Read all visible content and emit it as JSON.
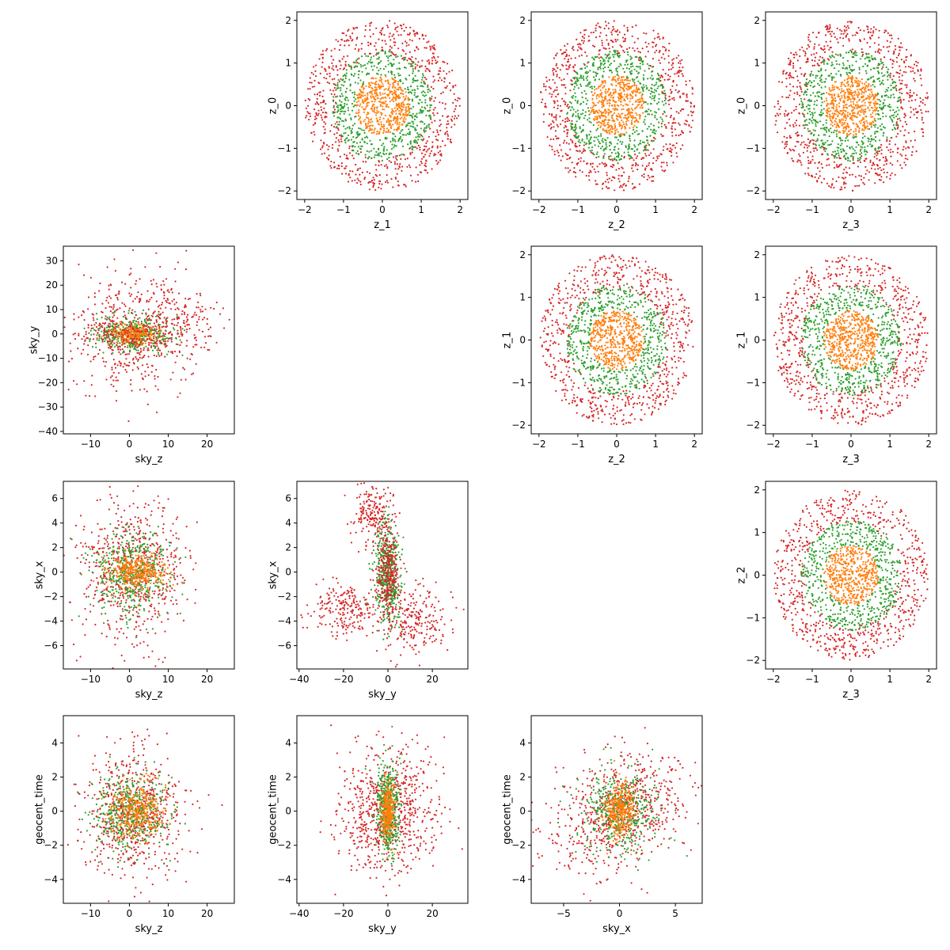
{
  "figure": {
    "background": "#ffffff",
    "axes_color": "#000000"
  },
  "legend": null,
  "chart_data": [
    {
      "type": "scatter",
      "subplot": [
        0,
        1
      ],
      "xlabel": "z_1",
      "ylabel": "z_0",
      "xlim": [
        -2.2,
        2.2
      ],
      "ylim": [
        -2.2,
        2.2
      ],
      "xticks": [
        -2,
        -1,
        0,
        1,
        2
      ],
      "yticks": [
        -2,
        -1,
        0,
        1,
        2
      ],
      "grid": false,
      "series": [
        {
          "color": "#d62728",
          "n": 700,
          "shape": "ring",
          "cx": 0,
          "cy": 0,
          "r0": 1.2,
          "r1": 2.0,
          "seed": 11
        },
        {
          "color": "#2ca02c",
          "n": 550,
          "shape": "ring",
          "cx": 0,
          "cy": 0,
          "r0": 0.7,
          "r1": 1.3,
          "seed": 12
        },
        {
          "color": "#ff7f0e",
          "n": 500,
          "shape": "disk",
          "cx": 0,
          "cy": 0,
          "r0": 0,
          "r1": 0.7,
          "seed": 13
        }
      ]
    },
    {
      "type": "scatter",
      "subplot": [
        0,
        2
      ],
      "xlabel": "z_2",
      "ylabel": "z_0",
      "xlim": [
        -2.2,
        2.2
      ],
      "ylim": [
        -2.2,
        2.2
      ],
      "xticks": [
        -2,
        -1,
        0,
        1,
        2
      ],
      "yticks": [
        -2,
        -1,
        0,
        1,
        2
      ],
      "grid": false,
      "series": [
        {
          "color": "#d62728",
          "n": 700,
          "shape": "ring",
          "cx": 0,
          "cy": 0,
          "r0": 1.2,
          "r1": 2.0,
          "seed": 21
        },
        {
          "color": "#2ca02c",
          "n": 550,
          "shape": "ring",
          "cx": 0,
          "cy": 0,
          "r0": 0.7,
          "r1": 1.3,
          "seed": 22
        },
        {
          "color": "#ff7f0e",
          "n": 500,
          "shape": "disk",
          "cx": 0,
          "cy": 0,
          "r0": 0,
          "r1": 0.7,
          "seed": 23
        }
      ]
    },
    {
      "type": "scatter",
      "subplot": [
        0,
        3
      ],
      "xlabel": "z_3",
      "ylabel": "z_0",
      "xlim": [
        -2.2,
        2.2
      ],
      "ylim": [
        -2.2,
        2.2
      ],
      "xticks": [
        -2,
        -1,
        0,
        1,
        2
      ],
      "yticks": [
        -2,
        -1,
        0,
        1,
        2
      ],
      "grid": false,
      "series": [
        {
          "color": "#d62728",
          "n": 700,
          "shape": "ring",
          "cx": 0,
          "cy": 0,
          "r0": 1.2,
          "r1": 2.0,
          "seed": 31
        },
        {
          "color": "#2ca02c",
          "n": 550,
          "shape": "ring",
          "cx": 0,
          "cy": 0,
          "r0": 0.7,
          "r1": 1.3,
          "seed": 32
        },
        {
          "color": "#ff7f0e",
          "n": 500,
          "shape": "disk",
          "cx": 0,
          "cy": 0,
          "r0": 0,
          "r1": 0.7,
          "seed": 33
        }
      ]
    },
    {
      "type": "scatter",
      "subplot": [
        1,
        0
      ],
      "xlabel": "sky_z",
      "ylabel": "sky_y",
      "xlim": [
        -17,
        27
      ],
      "ylim": [
        -41,
        36
      ],
      "xticks": [
        -10,
        0,
        10,
        20
      ],
      "yticks": [
        -40,
        -30,
        -20,
        -10,
        0,
        10,
        20,
        30
      ],
      "grid": false,
      "series": [
        {
          "color": "#d62728",
          "n": 420,
          "shape": "gauss",
          "cx": 0,
          "cy": 0,
          "sx": 7,
          "sy": 13,
          "seed": 41
        },
        {
          "color": "#d62728",
          "n": 200,
          "shape": "gauss",
          "cx": 12,
          "cy": 5,
          "sx": 6,
          "sy": 7,
          "seed": 42
        },
        {
          "color": "#2ca02c",
          "n": 380,
          "shape": "gauss",
          "cx": 1,
          "cy": 0,
          "sx": 5,
          "sy": 3.5,
          "seed": 43
        },
        {
          "color": "#ff7f0e",
          "n": 300,
          "shape": "gauss",
          "cx": 1,
          "cy": 0,
          "sx": 3,
          "sy": 2,
          "seed": 44
        },
        {
          "color": "#d62728",
          "n": 150,
          "shape": "gauss",
          "cx": -1,
          "cy": 0,
          "sx": 6,
          "sy": 3,
          "seed": 45
        }
      ]
    },
    {
      "type": "scatter",
      "subplot": [
        1,
        2
      ],
      "xlabel": "z_2",
      "ylabel": "z_1",
      "xlim": [
        -2.2,
        2.2
      ],
      "ylim": [
        -2.2,
        2.2
      ],
      "xticks": [
        -2,
        -1,
        0,
        1,
        2
      ],
      "yticks": [
        -2,
        -1,
        0,
        1,
        2
      ],
      "grid": false,
      "series": [
        {
          "color": "#d62728",
          "n": 700,
          "shape": "ring",
          "cx": 0,
          "cy": 0,
          "r0": 1.2,
          "r1": 2.0,
          "seed": 51
        },
        {
          "color": "#2ca02c",
          "n": 550,
          "shape": "ring",
          "cx": 0,
          "cy": 0,
          "r0": 0.7,
          "r1": 1.3,
          "seed": 52
        },
        {
          "color": "#ff7f0e",
          "n": 500,
          "shape": "disk",
          "cx": 0,
          "cy": 0,
          "r0": 0,
          "r1": 0.7,
          "seed": 53
        }
      ]
    },
    {
      "type": "scatter",
      "subplot": [
        1,
        3
      ],
      "xlabel": "z_3",
      "ylabel": "z_1",
      "xlim": [
        -2.2,
        2.2
      ],
      "ylim": [
        -2.2,
        2.2
      ],
      "xticks": [
        -2,
        -1,
        0,
        1,
        2
      ],
      "yticks": [
        -2,
        -1,
        0,
        1,
        2
      ],
      "grid": false,
      "series": [
        {
          "color": "#d62728",
          "n": 700,
          "shape": "ring",
          "cx": 0,
          "cy": 0,
          "r0": 1.2,
          "r1": 2.0,
          "seed": 61
        },
        {
          "color": "#2ca02c",
          "n": 550,
          "shape": "ring",
          "cx": 0,
          "cy": 0,
          "r0": 0.7,
          "r1": 1.3,
          "seed": 62
        },
        {
          "color": "#ff7f0e",
          "n": 500,
          "shape": "disk",
          "cx": 0,
          "cy": 0,
          "r0": 0,
          "r1": 0.7,
          "seed": 63
        }
      ]
    },
    {
      "type": "scatter",
      "subplot": [
        2,
        0
      ],
      "xlabel": "sky_z",
      "ylabel": "sky_x",
      "xlim": [
        -17,
        27
      ],
      "ylim": [
        -7.9,
        7.4
      ],
      "xticks": [
        -10,
        0,
        10,
        20
      ],
      "yticks": [
        -6,
        -4,
        -2,
        0,
        2,
        4,
        6
      ],
      "grid": false,
      "series": [
        {
          "color": "#d62728",
          "n": 650,
          "shape": "gauss",
          "cx": 1,
          "cy": 0,
          "sx": 7,
          "sy": 2.8,
          "seed": 71
        },
        {
          "color": "#2ca02c",
          "n": 450,
          "shape": "gauss",
          "cx": 0,
          "cy": 0,
          "sx": 5,
          "sy": 1.8,
          "seed": 72
        },
        {
          "color": "#ff7f0e",
          "n": 350,
          "shape": "gauss",
          "cx": 2,
          "cy": 0,
          "sx": 3.5,
          "sy": 0.7,
          "seed": 73
        }
      ]
    },
    {
      "type": "scatter",
      "subplot": [
        2,
        1
      ],
      "xlabel": "sky_y",
      "ylabel": "sky_x",
      "xlim": [
        -41,
        36
      ],
      "ylim": [
        -7.9,
        7.4
      ],
      "xticks": [
        -40,
        -20,
        0,
        20
      ],
      "yticks": [
        -6,
        -4,
        -2,
        0,
        2,
        4,
        6
      ],
      "grid": false,
      "series": [
        {
          "color": "#d62728",
          "n": 220,
          "shape": "gauss",
          "cx": -6,
          "cy": 4.5,
          "sx": 5,
          "sy": 1.3,
          "seed": 81
        },
        {
          "color": "#d62728",
          "n": 220,
          "shape": "gauss",
          "cx": -18,
          "cy": -3,
          "sx": 8,
          "sy": 1,
          "seed": 82
        },
        {
          "color": "#d62728",
          "n": 240,
          "shape": "gauss",
          "cx": 12,
          "cy": -4,
          "sx": 8,
          "sy": 1.6,
          "seed": 83
        },
        {
          "color": "#2ca02c",
          "n": 450,
          "shape": "gauss",
          "cx": 0,
          "cy": 0,
          "sx": 3,
          "sy": 2,
          "seed": 84
        },
        {
          "color": "#d62728",
          "n": 300,
          "shape": "gauss",
          "cx": 0,
          "cy": 0,
          "sx": 2.5,
          "sy": 1.6,
          "seed": 85
        }
      ]
    },
    {
      "type": "scatter",
      "subplot": [
        2,
        3
      ],
      "xlabel": "z_3",
      "ylabel": "z_2",
      "xlim": [
        -2.2,
        2.2
      ],
      "ylim": [
        -2.2,
        2.2
      ],
      "xticks": [
        -2,
        -1,
        0,
        1,
        2
      ],
      "yticks": [
        -2,
        -1,
        0,
        1,
        2
      ],
      "grid": false,
      "series": [
        {
          "color": "#d62728",
          "n": 700,
          "shape": "ring",
          "cx": 0,
          "cy": 0,
          "r0": 1.2,
          "r1": 2.0,
          "seed": 91
        },
        {
          "color": "#2ca02c",
          "n": 550,
          "shape": "ring",
          "cx": 0,
          "cy": 0,
          "r0": 0.7,
          "r1": 1.3,
          "seed": 92
        },
        {
          "color": "#ff7f0e",
          "n": 500,
          "shape": "disk",
          "cx": 0,
          "cy": 0,
          "r0": 0,
          "r1": 0.7,
          "seed": 93
        }
      ]
    },
    {
      "type": "scatter",
      "subplot": [
        3,
        0
      ],
      "xlabel": "sky_z",
      "ylabel": "geocent_time",
      "xlim": [
        -17,
        27
      ],
      "ylim": [
        -5.4,
        5.6
      ],
      "xticks": [
        -10,
        0,
        10,
        20
      ],
      "yticks": [
        -4,
        -2,
        0,
        2,
        4
      ],
      "grid": false,
      "series": [
        {
          "color": "#d62728",
          "n": 650,
          "shape": "gauss",
          "cx": 1,
          "cy": 0,
          "sx": 7,
          "sy": 1.9,
          "seed": 101
        },
        {
          "color": "#2ca02c",
          "n": 450,
          "shape": "gauss",
          "cx": 0,
          "cy": 0,
          "sx": 5,
          "sy": 1.2,
          "seed": 102
        },
        {
          "color": "#ff7f0e",
          "n": 350,
          "shape": "gauss",
          "cx": 2,
          "cy": 0,
          "sx": 3.5,
          "sy": 0.8,
          "seed": 103
        }
      ]
    },
    {
      "type": "scatter",
      "subplot": [
        3,
        1
      ],
      "xlabel": "sky_y",
      "ylabel": "geocent_time",
      "xlim": [
        -41,
        36
      ],
      "ylim": [
        -5.4,
        5.6
      ],
      "xticks": [
        -40,
        -20,
        0,
        20
      ],
      "yticks": [
        -4,
        -2,
        0,
        2,
        4
      ],
      "grid": false,
      "series": [
        {
          "color": "#d62728",
          "n": 700,
          "shape": "gauss",
          "cx": 0,
          "cy": 0,
          "sx": 11,
          "sy": 1.8,
          "seed": 111
        },
        {
          "color": "#2ca02c",
          "n": 450,
          "shape": "gauss",
          "cx": 0,
          "cy": 0,
          "sx": 2.5,
          "sy": 1.3,
          "seed": 112
        },
        {
          "color": "#ff7f0e",
          "n": 300,
          "shape": "gauss",
          "cx": 0,
          "cy": 0,
          "sx": 1.5,
          "sy": 0.8,
          "seed": 113
        }
      ]
    },
    {
      "type": "scatter",
      "subplot": [
        3,
        2
      ],
      "xlabel": "sky_x",
      "ylabel": "geocent_time",
      "xlim": [
        -7.9,
        7.4
      ],
      "ylim": [
        -5.4,
        5.6
      ],
      "xticks": [
        -5,
        0,
        5
      ],
      "yticks": [
        -4,
        -2,
        0,
        2,
        4
      ],
      "grid": false,
      "series": [
        {
          "color": "#d62728",
          "n": 700,
          "shape": "gauss",
          "cx": 0,
          "cy": 0,
          "sx": 3,
          "sy": 1.8,
          "rho": 0.35,
          "seed": 121
        },
        {
          "color": "#2ca02c",
          "n": 450,
          "shape": "gauss",
          "cx": 0,
          "cy": 0,
          "sx": 1.8,
          "sy": 1.2,
          "seed": 122
        },
        {
          "color": "#ff7f0e",
          "n": 350,
          "shape": "gauss",
          "cx": 0,
          "cy": 0,
          "sx": 0.7,
          "sy": 0.8,
          "seed": 123
        }
      ]
    }
  ]
}
